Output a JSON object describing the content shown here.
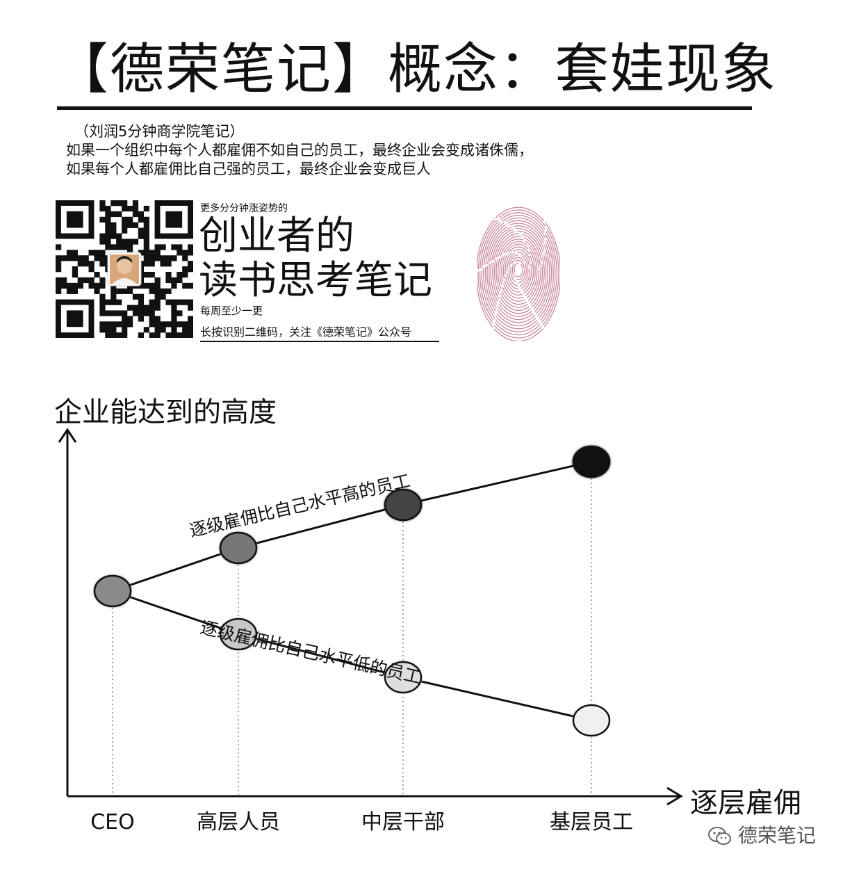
{
  "header": {
    "title": "【德荣笔记】概念：套娃现象"
  },
  "intro": {
    "source": "（刘润5分钟商学院笔记）",
    "line1": "如果一个组织中每个人都雇佣不如自己的员工，最终企业会变成诸侏儒，",
    "line2": "如果每个人都雇佣比自己强的员工，最终企业会变成巨人"
  },
  "promo": {
    "top_text": "更多分分钟涨姿势的",
    "big_line1": "创业者的",
    "big_line2": "读书思考笔记",
    "small_text": "每周至少一更",
    "cta": "长按识别二维码，关注《德荣笔记》公众号"
  },
  "chart_data": {
    "type": "line",
    "ylabel": "企业能达到的高度",
    "xlabel": "逐层雇佣",
    "categories": [
      "CEO",
      "高层人员",
      "中层干部",
      "基层员工"
    ],
    "series": [
      {
        "name": "逐级雇佣比自己水平高的员工",
        "values": [
          0,
          1,
          2,
          3
        ],
        "node_colors": [
          "#8a8a8a",
          "#777777",
          "#444444",
          "#111111"
        ]
      },
      {
        "name": "逐级雇佣比自己水平低的员工",
        "values": [
          0,
          -1,
          -2,
          -3
        ],
        "node_colors": [
          "#8a8a8a",
          "#c8c8c8",
          "#dedede",
          "#f0f0f0"
        ]
      }
    ]
  },
  "watermark": {
    "text": "德荣笔记",
    "icon": "wechat-icon"
  }
}
